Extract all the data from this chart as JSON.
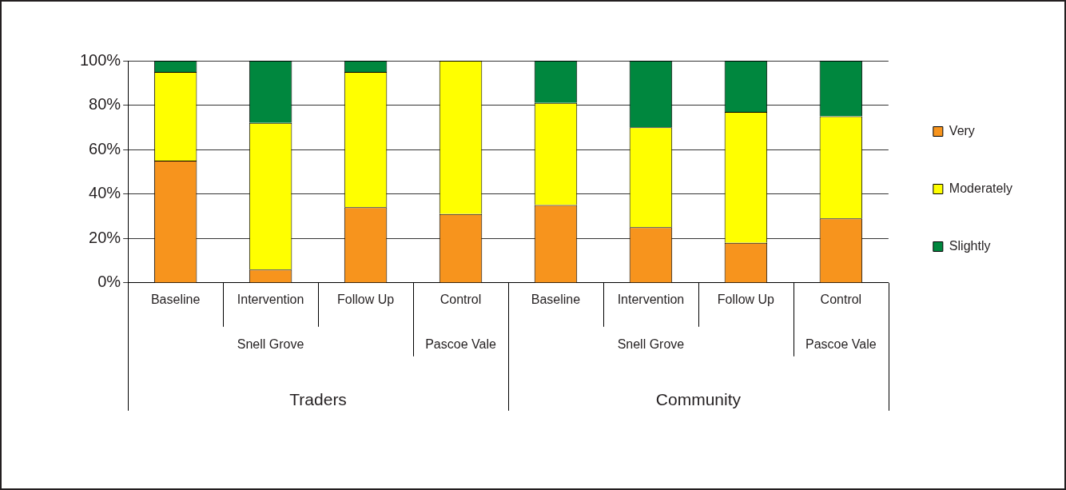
{
  "chart_data": {
    "type": "bar",
    "stacked": true,
    "categories": [
      "Baseline",
      "Intervention",
      "Follow Up",
      "Control",
      "Baseline",
      "Intervention",
      "Follow Up",
      "Control"
    ],
    "series": [
      {
        "name": "Very",
        "color": "#f7941d",
        "values": [
          55,
          6,
          34,
          31,
          35,
          25,
          18,
          29
        ]
      },
      {
        "name": "Moderately",
        "color": "#ffff00",
        "values": [
          40,
          66,
          61,
          69,
          46,
          45,
          59,
          46
        ]
      },
      {
        "name": "Slightly",
        "color": "#00873e",
        "values": [
          5,
          28,
          5,
          0,
          19,
          30,
          23,
          25
        ]
      }
    ],
    "ylim": [
      0,
      100
    ],
    "yticks": [
      {
        "value": 0,
        "label": "0%"
      },
      {
        "value": 20,
        "label": "20%"
      },
      {
        "value": 40,
        "label": "40%"
      },
      {
        "value": 60,
        "label": "60%"
      },
      {
        "value": 80,
        "label": "80%"
      },
      {
        "value": 100,
        "label": "100%"
      }
    ],
    "grid": "y",
    "legend": "right",
    "annotations": [
      "Snell Grove",
      "Pascoe Vale",
      "Snell Grove",
      "Pascoe Vale",
      "Traders",
      "Community"
    ]
  }
}
